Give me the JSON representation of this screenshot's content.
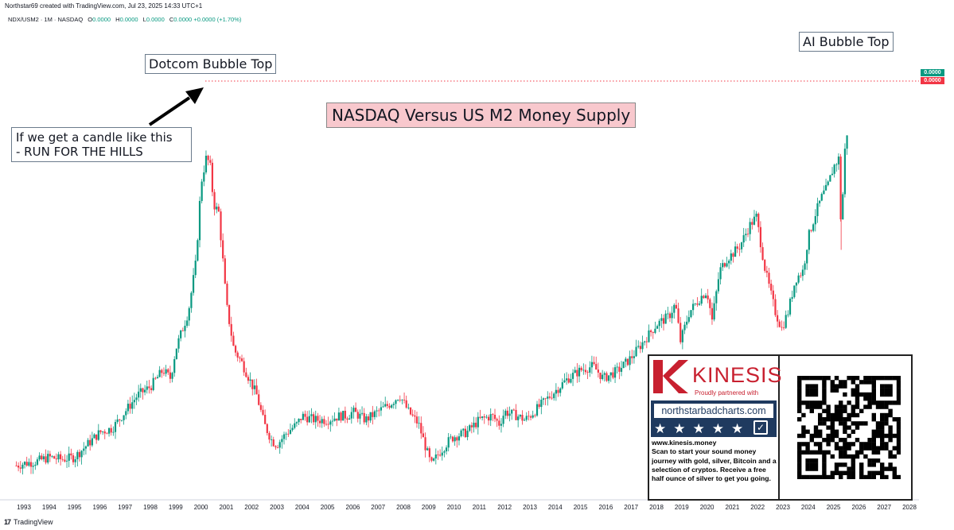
{
  "credit": "Northstar69 created with TradingView.com, Jul 23, 2025 14:33 UTC+1",
  "symbol": {
    "name": "NDX/USM2 · 1M · NASDAQ",
    "o_label": "O",
    "o_value": "0.0000",
    "h_label": "H",
    "h_value": "0.0000",
    "l_label": "L",
    "l_value": "0.0000",
    "c_label": "C",
    "c_value": "0.0000",
    "change": "+0.0000 (+1.70%)"
  },
  "annotations": {
    "dotcom_top": "Dotcom Bubble Top",
    "ai_top": "AI Bubble Top",
    "note_line1": "If we get a candle like this",
    "note_line2": "- RUN FOR THE HILLS",
    "title": "NASDAQ Versus US M2 Money Supply"
  },
  "price_tags": [
    "0.0000",
    "0.0000"
  ],
  "colors": {
    "up": "#089981",
    "down": "#f23645",
    "dotted_line": "#f23645",
    "title_bg": "#f8c8cd",
    "kinesis_red": "#c8202f",
    "nsb_navy": "#1f3a5f"
  },
  "ad": {
    "brand": "KINESIS",
    "brand_sub": "Proudly partnered with",
    "partner_url": "northstarbadcharts.com",
    "stars": "★★★★★",
    "check": "✓",
    "site": "www.kinesis.money",
    "text": "Scan to start your sound money journey with gold, silver, Bitcoin and a selection of cryptos. Receive a free half ounce of silver to get you going.",
    "qr_icon": "qr-code-icon"
  },
  "footer": {
    "logo_mark": "17",
    "logo_text": "TradingView"
  },
  "chart_data": {
    "type": "line",
    "title": "NASDAQ Versus US M2 Money Supply",
    "xlabel": "",
    "ylabel": "",
    "x_ticks": [
      "1993",
      "1994",
      "1995",
      "1996",
      "1997",
      "1998",
      "1999",
      "2000",
      "2001",
      "2002",
      "2003",
      "2004",
      "2005",
      "2006",
      "2007",
      "2008",
      "2009",
      "2010",
      "2011",
      "2012",
      "2013",
      "2014",
      "2015",
      "2016",
      "2017",
      "2018",
      "2019",
      "2020",
      "2021",
      "2022",
      "2023",
      "2024",
      "2025",
      "2026",
      "2027",
      "2028"
    ],
    "xlim": [
      1992.7,
      2028.7
    ],
    "ylim": [
      0,
      100
    ],
    "y_axis_note": "relative scale (price axis values not printed)",
    "candlestick_style": true,
    "series": [
      {
        "values": [
          [
            1992.7,
            5
          ],
          [
            1993.0,
            5.5
          ],
          [
            1993.5,
            6
          ],
          [
            1994.0,
            7
          ],
          [
            1994.5,
            6.5
          ],
          [
            1995.0,
            7
          ],
          [
            1995.5,
            10
          ],
          [
            1996.0,
            13
          ],
          [
            1996.5,
            14
          ],
          [
            1997.0,
            18
          ],
          [
            1997.5,
            22
          ],
          [
            1998.0,
            24
          ],
          [
            1998.5,
            28
          ],
          [
            1998.8,
            26
          ],
          [
            1999.0,
            33
          ],
          [
            1999.5,
            42
          ],
          [
            1999.8,
            54
          ],
          [
            2000.0,
            73
          ],
          [
            2000.2,
            79
          ],
          [
            2000.35,
            78
          ],
          [
            2000.5,
            68
          ],
          [
            2000.7,
            66
          ],
          [
            2000.9,
            52
          ],
          [
            2001.0,
            44
          ],
          [
            2001.3,
            33
          ],
          [
            2001.6,
            30
          ],
          [
            2001.9,
            26
          ],
          [
            2002.2,
            22
          ],
          [
            2002.5,
            15
          ],
          [
            2002.8,
            11
          ],
          [
            2003.0,
            10
          ],
          [
            2003.4,
            13
          ],
          [
            2003.8,
            15
          ],
          [
            2004.0,
            17
          ],
          [
            2004.5,
            16
          ],
          [
            2005.0,
            16
          ],
          [
            2005.5,
            17
          ],
          [
            2005.8,
            17
          ],
          [
            2006.0,
            18
          ],
          [
            2006.5,
            16
          ],
          [
            2007.0,
            18
          ],
          [
            2007.5,
            20
          ],
          [
            2007.85,
            22
          ],
          [
            2008.2,
            18
          ],
          [
            2008.6,
            15
          ],
          [
            2008.9,
            9
          ],
          [
            2009.1,
            5
          ],
          [
            2009.4,
            8
          ],
          [
            2009.8,
            11
          ],
          [
            2010.0,
            12
          ],
          [
            2010.5,
            13
          ],
          [
            2011.0,
            16
          ],
          [
            2011.5,
            17
          ],
          [
            2011.8,
            15
          ],
          [
            2012.0,
            18
          ],
          [
            2012.5,
            17
          ],
          [
            2012.8,
            16
          ],
          [
            2013.0,
            17
          ],
          [
            2013.5,
            20
          ],
          [
            2014.0,
            23
          ],
          [
            2014.5,
            26
          ],
          [
            2015.0,
            28
          ],
          [
            2015.5,
            29
          ],
          [
            2015.9,
            26
          ],
          [
            2016.2,
            27
          ],
          [
            2016.5,
            28
          ],
          [
            2017.0,
            31
          ],
          [
            2017.5,
            35
          ],
          [
            2018.0,
            39
          ],
          [
            2018.5,
            41
          ],
          [
            2018.75,
            44
          ],
          [
            2018.95,
            35
          ],
          [
            2019.3,
            42
          ],
          [
            2019.8,
            46
          ],
          [
            2020.0,
            47
          ],
          [
            2020.2,
            40
          ],
          [
            2020.5,
            52
          ],
          [
            2020.8,
            55
          ],
          [
            2021.0,
            56
          ],
          [
            2021.3,
            58
          ],
          [
            2021.7,
            63
          ],
          [
            2021.95,
            65
          ],
          [
            2022.3,
            52
          ],
          [
            2022.7,
            42
          ],
          [
            2022.95,
            38
          ],
          [
            2023.2,
            42
          ],
          [
            2023.5,
            50
          ],
          [
            2023.8,
            52
          ],
          [
            2024.0,
            60
          ],
          [
            2024.3,
            66
          ],
          [
            2024.55,
            70
          ],
          [
            2024.75,
            72
          ],
          [
            2025.0,
            77
          ],
          [
            2025.2,
            79
          ],
          [
            2025.3,
            62
          ],
          [
            2025.45,
            81
          ],
          [
            2025.55,
            86
          ]
        ]
      }
    ]
  }
}
